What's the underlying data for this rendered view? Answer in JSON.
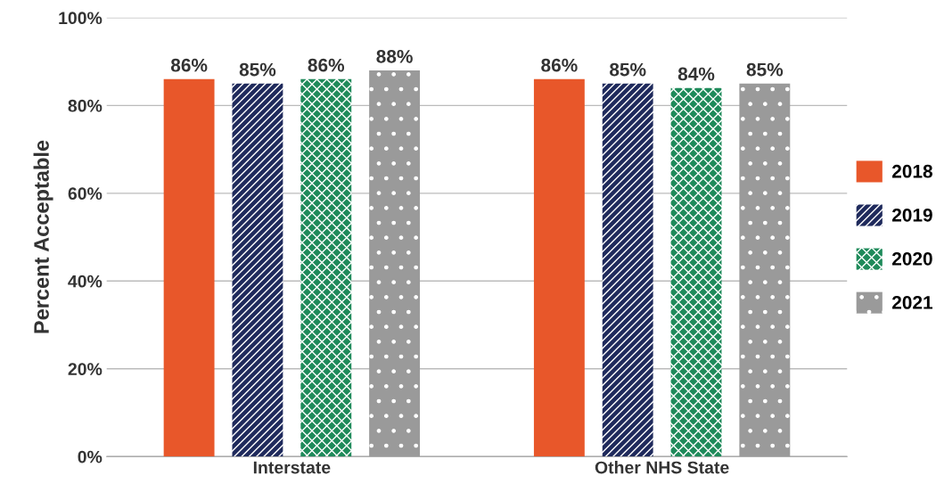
{
  "chart_data": {
    "type": "bar",
    "ylabel": "Percent Acceptable",
    "categories": [
      "Interstate",
      "Other NHS State"
    ],
    "series": [
      {
        "name": "2018",
        "color": "#e8572a",
        "values": [
          86,
          86
        ],
        "value_labels": [
          "86%",
          "86%"
        ]
      },
      {
        "name": "2019",
        "color": "#1f2a5c",
        "values": [
          85,
          85
        ],
        "value_labels": [
          "85%",
          "85%"
        ]
      },
      {
        "name": "2020",
        "color": "#1e8a5a",
        "values": [
          86,
          84
        ],
        "value_labels": [
          "86%",
          "84%"
        ]
      },
      {
        "name": "2021",
        "color": "#9a9a9a",
        "values": [
          88,
          85
        ],
        "value_labels": [
          "88%",
          "85%"
        ]
      }
    ],
    "ylim": [
      0,
      100
    ],
    "yticks": [
      {
        "value": 0,
        "label": "0%"
      },
      {
        "value": 20,
        "label": "20%"
      },
      {
        "value": 40,
        "label": "40%"
      },
      {
        "value": 60,
        "label": "60%"
      },
      {
        "value": 80,
        "label": "80%"
      },
      {
        "value": 100,
        "label": "100%"
      }
    ],
    "grid": "y",
    "legend": "right"
  }
}
